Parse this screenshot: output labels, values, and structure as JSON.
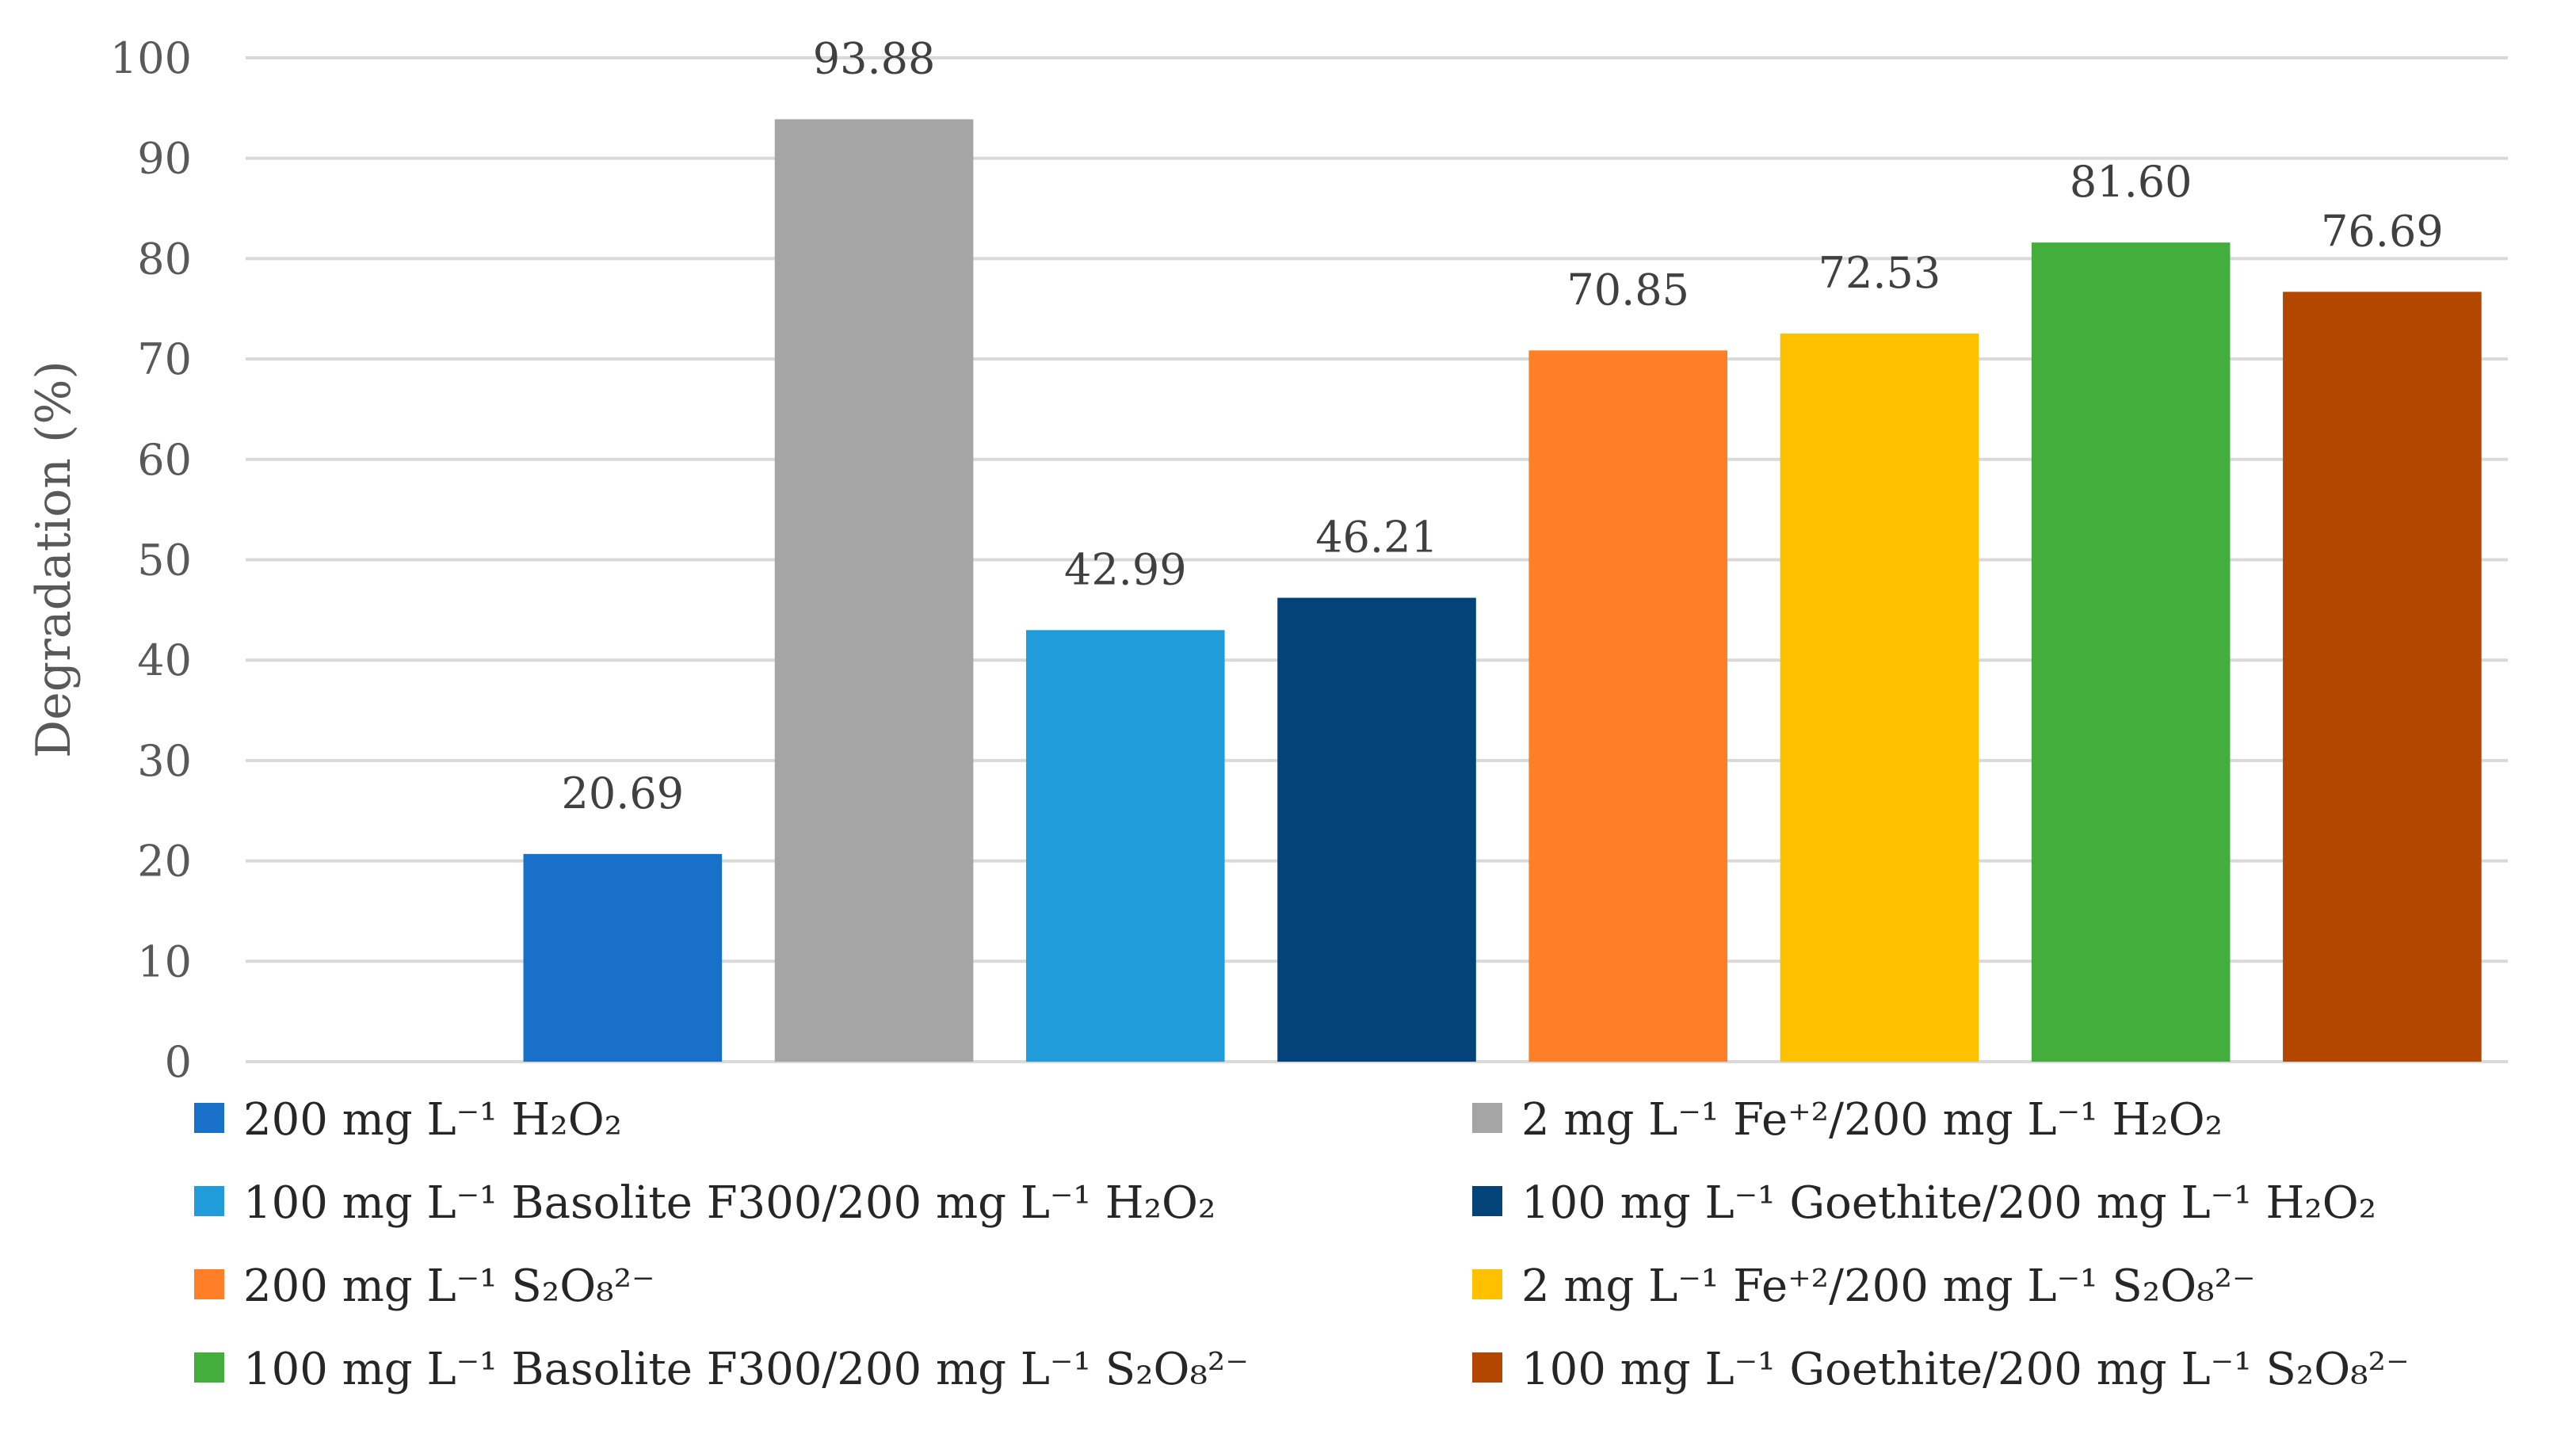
{
  "chart_data": {
    "type": "bar",
    "title": "",
    "xlabel": "",
    "ylabel": "Degradation (%)",
    "ylim": [
      0,
      100
    ],
    "yticks": [
      0,
      10,
      20,
      30,
      40,
      50,
      60,
      70,
      80,
      90,
      100
    ],
    "grid": true,
    "legend_position": "bottom",
    "series": [
      {
        "name": "200 mg L⁻¹ H₂O₂",
        "value": 20.69,
        "label": "20.69",
        "color": "#1870C8"
      },
      {
        "name": "2 mg L⁻¹ Fe⁺²/200 mg L⁻¹ H₂O₂",
        "value": 93.88,
        "label": "93.88",
        "color": "#A5A5A5"
      },
      {
        "name": "100 mg L⁻¹ Basolite F300/200 mg L⁻¹ H₂O₂",
        "value": 42.99,
        "label": "42.99",
        "color": "#1F9CD9"
      },
      {
        "name": "100 mg L⁻¹ Goethite/200 mg L⁻¹ H₂O₂",
        "value": 46.21,
        "label": "46.21",
        "color": "#03437A"
      },
      {
        "name": "200 mg L⁻¹ S₂O₈²⁻",
        "value": 70.85,
        "label": "70.85",
        "color": "#FE7F27"
      },
      {
        "name": "2 mg L⁻¹ Fe⁺²/200 mg L⁻¹ S₂O₈²⁻",
        "value": 72.53,
        "label": "72.53",
        "color": "#FFC000"
      },
      {
        "name": "100 mg L⁻¹ Basolite F300/200 mg L⁻¹ S₂O₈²⁻",
        "value": 81.6,
        "label": "81.60",
        "color": "#43AE3C"
      },
      {
        "name": "100 mg L⁻¹ Goethite/200 mg L⁻¹ S₂O₈²⁻",
        "value": 76.69,
        "label": "76.69",
        "color": "#B34700"
      }
    ]
  }
}
